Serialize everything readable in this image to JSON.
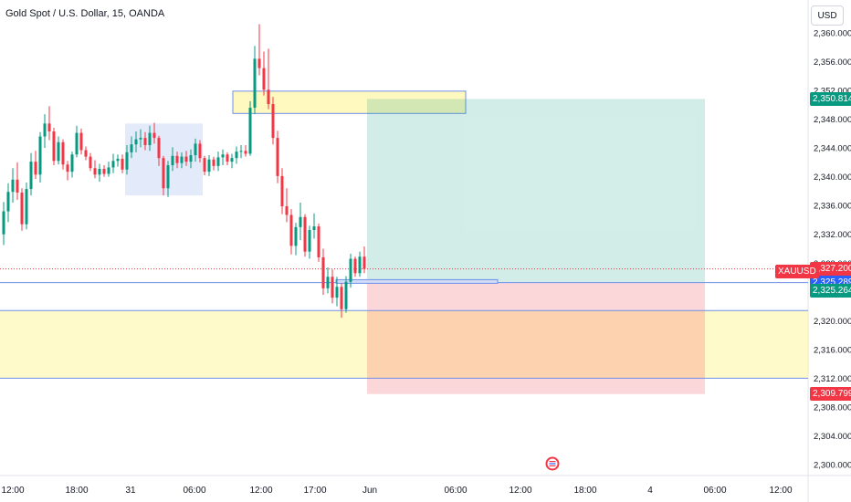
{
  "chart_title": "Gold Spot / U.S. Dollar, 15, OANDA",
  "currency_button": "USD",
  "symbol": "XAUUSD",
  "colors": {
    "up": "#089981",
    "down": "#f23645",
    "blue_line": "#2962ff",
    "zone_yellow": "#fff59d",
    "target_green": "#089981",
    "stop_red": "#f23645",
    "event_flag": "flag-icon"
  },
  "price_axis": {
    "ticks": [
      "2,360.000",
      "2,356.000",
      "2,352.000",
      "2,348.000",
      "2,344.000",
      "2,340.000",
      "2,336.000",
      "2,332.000",
      "2,328.000",
      "2,324.000",
      "2,320.000",
      "2,316.000",
      "2,312.000",
      "2,308.000",
      "2,304.000",
      "2,300.000"
    ]
  },
  "time_axis": {
    "labels": [
      "12:00",
      "18:00",
      "31",
      "06:00",
      "12:00",
      "17:00",
      "Jun",
      "06:00",
      "12:00",
      "18:00",
      "4",
      "06:00",
      "12:00"
    ]
  },
  "price_tags": [
    {
      "name": "target-price-tag",
      "label": "2,350.814",
      "color": "#089981"
    },
    {
      "name": "current-price-tag",
      "label": "2,327.200",
      "color": "#f23645"
    },
    {
      "name": "blue-line-price-tag",
      "label": "2,325.289",
      "color": "#2962ff"
    },
    {
      "name": "entry-price-tag",
      "label": "2,325.264",
      "color": "#089981"
    },
    {
      "name": "stop-price-tag",
      "label": "2,309.799",
      "color": "#f23645"
    }
  ],
  "chart_data": {
    "type": "candlestick",
    "instrument": "XAUUSD",
    "timeframe": "15",
    "ylim": [
      2300,
      2360
    ],
    "current_price": 2327.2,
    "long_position": {
      "entry": 2325.264,
      "target": 2350.814,
      "stop": 2309.799
    },
    "horizontal_lines": [
      2325.289,
      2321.4,
      2312.0
    ],
    "zones": [
      {
        "top": 2351.9,
        "bottom": 2348.8,
        "kind": "supply"
      },
      {
        "top": 2321.4,
        "bottom": 2312.0,
        "kind": "demand"
      }
    ],
    "candles": [
      [
        2332.0,
        2336.5,
        2330.5,
        2335.2
      ],
      [
        2335.2,
        2339.1,
        2333.7,
        2337.9
      ],
      [
        2337.9,
        2341.2,
        2336.4,
        2339.6
      ],
      [
        2339.6,
        2342.0,
        2336.8,
        2337.8
      ],
      [
        2337.8,
        2338.4,
        2332.5,
        2333.4
      ],
      [
        2333.4,
        2339.2,
        2332.7,
        2338.3
      ],
      [
        2338.3,
        2343.3,
        2337.4,
        2342.1
      ],
      [
        2342.1,
        2343.6,
        2339.7,
        2340.3
      ],
      [
        2340.3,
        2346.2,
        2339.2,
        2345.6
      ],
      [
        2345.6,
        2348.7,
        2344.0,
        2347.4
      ],
      [
        2347.4,
        2349.8,
        2345.1,
        2346.3
      ],
      [
        2346.3,
        2346.8,
        2341.6,
        2342.2
      ],
      [
        2342.2,
        2345.6,
        2341.7,
        2344.8
      ],
      [
        2344.8,
        2345.2,
        2341.0,
        2341.7
      ],
      [
        2341.7,
        2342.2,
        2339.5,
        2340.7
      ],
      [
        2340.7,
        2343.5,
        2339.9,
        2343.1
      ],
      [
        2343.1,
        2347.1,
        2342.7,
        2346.1
      ],
      [
        2346.1,
        2346.7,
        2343.1,
        2343.7
      ],
      [
        2343.7,
        2344.2,
        2342.3,
        2342.8
      ],
      [
        2342.8,
        2343.3,
        2340.8,
        2341.2
      ],
      [
        2341.2,
        2342.3,
        2339.8,
        2340.3
      ],
      [
        2340.3,
        2341.8,
        2339.3,
        2341.1
      ],
      [
        2341.1,
        2341.6,
        2340.0,
        2340.4
      ],
      [
        2340.4,
        2342.1,
        2340.0,
        2341.3
      ],
      [
        2341.3,
        2343.2,
        2340.5,
        2342.2
      ],
      [
        2342.2,
        2343.1,
        2341.4,
        2342.5
      ],
      [
        2342.5,
        2343.1,
        2340.5,
        2341.0
      ],
      [
        2341.0,
        2344.4,
        2340.3,
        2343.4
      ],
      [
        2343.4,
        2345.6,
        2342.6,
        2344.5
      ],
      [
        2344.5,
        2346.3,
        2343.4,
        2345.2
      ],
      [
        2345.2,
        2346.6,
        2344.1,
        2345.4
      ],
      [
        2345.4,
        2346.2,
        2343.7,
        2344.4
      ],
      [
        2344.4,
        2347.1,
        2343.6,
        2346.1
      ],
      [
        2346.1,
        2347.5,
        2344.6,
        2345.4
      ],
      [
        2345.4,
        2345.7,
        2341.5,
        2342.6
      ],
      [
        2342.6,
        2342.9,
        2337.4,
        2338.4
      ],
      [
        2338.4,
        2342.2,
        2337.2,
        2341.6
      ],
      [
        2341.6,
        2344.1,
        2340.8,
        2342.9
      ],
      [
        2342.9,
        2343.5,
        2341.2,
        2341.9
      ],
      [
        2341.9,
        2343.4,
        2341.2,
        2342.8
      ],
      [
        2342.8,
        2343.6,
        2341.5,
        2342.1
      ],
      [
        2342.1,
        2343.8,
        2341.2,
        2343.0
      ],
      [
        2343.0,
        2345.3,
        2342.1,
        2344.6
      ],
      [
        2344.6,
        2345.1,
        2342.0,
        2342.6
      ],
      [
        2342.6,
        2342.9,
        2340.2,
        2340.7
      ],
      [
        2340.7,
        2343.0,
        2340.1,
        2342.4
      ],
      [
        2342.4,
        2342.8,
        2340.9,
        2341.5
      ],
      [
        2341.5,
        2343.5,
        2340.8,
        2342.7
      ],
      [
        2342.7,
        2343.8,
        2341.6,
        2343.1
      ],
      [
        2343.1,
        2343.4,
        2341.6,
        2342.1
      ],
      [
        2342.1,
        2343.2,
        2341.2,
        2342.6
      ],
      [
        2342.6,
        2344.2,
        2341.8,
        2343.5
      ],
      [
        2343.5,
        2344.4,
        2342.6,
        2343.6
      ],
      [
        2343.6,
        2344.4,
        2342.8,
        2343.2
      ],
      [
        2343.2,
        2350.5,
        2342.9,
        2349.6
      ],
      [
        2349.6,
        2358.2,
        2348.7,
        2356.4
      ],
      [
        2356.4,
        2361.2,
        2354.1,
        2355.1
      ],
      [
        2355.1,
        2357.4,
        2351.3,
        2352.1
      ],
      [
        2352.1,
        2357.8,
        2349.4,
        2350.1
      ],
      [
        2350.1,
        2351.1,
        2344.5,
        2345.4
      ],
      [
        2345.4,
        2346.4,
        2339.1,
        2340.1
      ],
      [
        2340.1,
        2341.2,
        2334.8,
        2335.9
      ],
      [
        2335.9,
        2338.4,
        2333.7,
        2334.7
      ],
      [
        2334.7,
        2335.5,
        2329.2,
        2330.4
      ],
      [
        2330.4,
        2333.6,
        2329.1,
        2333.0
      ],
      [
        2333.0,
        2336.4,
        2331.2,
        2334.4
      ],
      [
        2334.4,
        2334.8,
        2328.9,
        2329.6
      ],
      [
        2329.6,
        2333.2,
        2328.6,
        2332.6
      ],
      [
        2332.6,
        2334.9,
        2331.4,
        2333.1
      ],
      [
        2333.1,
        2333.5,
        2328.2,
        2328.8
      ],
      [
        2328.8,
        2330.0,
        2323.6,
        2324.5
      ],
      [
        2324.5,
        2327.4,
        2323.8,
        2326.1
      ],
      [
        2326.1,
        2327.1,
        2322.4,
        2323.2
      ],
      [
        2323.2,
        2326.1,
        2322.0,
        2324.7
      ],
      [
        2324.7,
        2325.2,
        2320.4,
        2321.6
      ],
      [
        2321.6,
        2326.2,
        2321.1,
        2325.4
      ],
      [
        2325.4,
        2329.3,
        2324.6,
        2328.6
      ],
      [
        2328.6,
        2328.9,
        2326.1,
        2326.6
      ],
      [
        2326.6,
        2329.6,
        2326.1,
        2328.9
      ],
      [
        2328.9,
        2330.3,
        2326.6,
        2327.2
      ]
    ]
  }
}
